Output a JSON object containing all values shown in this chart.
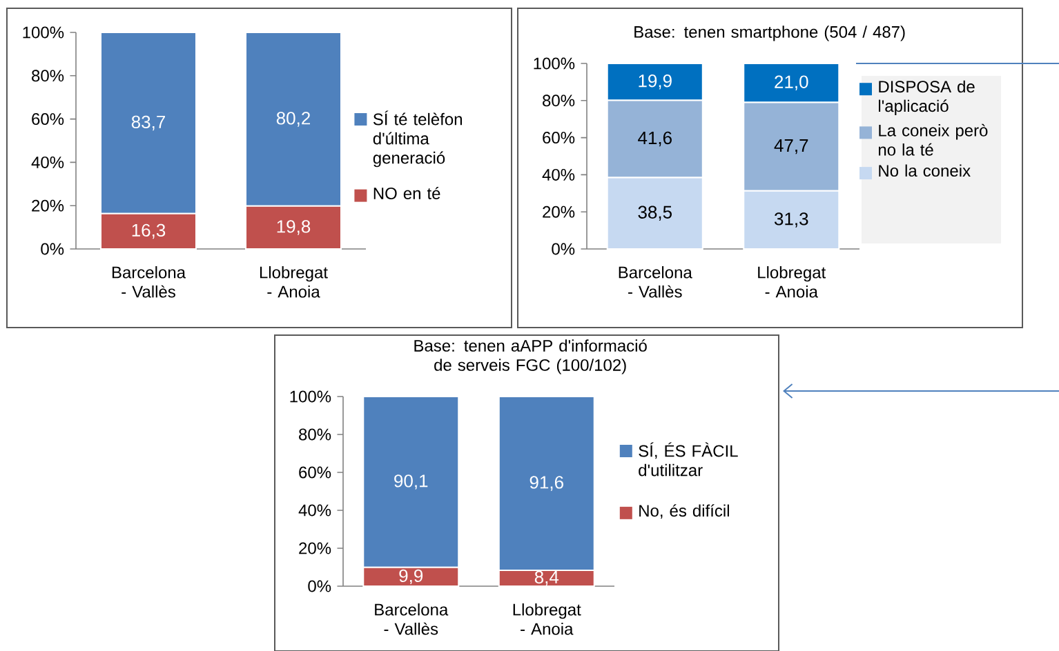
{
  "chart_data": [
    {
      "type": "bar",
      "stacked": true,
      "categories": [
        "Barcelona - Vallès",
        "Llobregat - Anoia"
      ],
      "ylim": [
        0,
        100
      ],
      "yticks": [
        {
          "value": 0,
          "label": "0%"
        },
        {
          "value": 20,
          "label": "20%"
        },
        {
          "value": 40,
          "label": "40%"
        },
        {
          "value": 60,
          "label": "60%"
        },
        {
          "value": 80,
          "label": "80%"
        },
        {
          "value": 100,
          "label": "100%"
        }
      ],
      "legend": "right",
      "series": [
        {
          "name": "NO en té",
          "color": "#c0504d",
          "values": [
            16.3,
            19.8
          ],
          "value_labels": [
            "16,3",
            "19,8"
          ]
        },
        {
          "name": "SÍ té telèfon d'última generació",
          "color": "#4f81bd",
          "values": [
            83.7,
            80.2
          ],
          "value_labels": [
            "83,7",
            "80,2"
          ]
        }
      ]
    },
    {
      "type": "bar",
      "stacked": true,
      "title": "Base: tenen smartphone (504 / 487)",
      "categories": [
        "Barcelona - Vallès",
        "Llobregat - Anoia"
      ],
      "ylim": [
        0,
        100
      ],
      "yticks": [
        {
          "value": 0,
          "label": "0%"
        },
        {
          "value": 20,
          "label": "20%"
        },
        {
          "value": 40,
          "label": "40%"
        },
        {
          "value": 60,
          "label": "60%"
        },
        {
          "value": 80,
          "label": "80%"
        },
        {
          "value": 100,
          "label": "100%"
        }
      ],
      "legend": "right",
      "series": [
        {
          "name": "No la coneix",
          "color": "#c6d9f1",
          "values": [
            38.5,
            31.3
          ],
          "value_labels": [
            "38,5",
            "31,3"
          ]
        },
        {
          "name": "La coneix però no la té",
          "color": "#95b3d7",
          "values": [
            41.6,
            47.7
          ],
          "value_labels": [
            "41,6",
            "47,7"
          ]
        },
        {
          "name": "DISPOSA de l'aplicació",
          "color": "#0070c0",
          "values": [
            19.9,
            21.0
          ],
          "value_labels": [
            "19,9",
            "21,0"
          ]
        }
      ]
    },
    {
      "type": "bar",
      "stacked": true,
      "title": "Base: tenen aAPP d'informació de serveis FGC (100/102)",
      "categories": [
        "Barcelona - Vallès",
        "Llobregat - Anoia"
      ],
      "ylim": [
        0,
        100
      ],
      "yticks": [
        {
          "value": 0,
          "label": "0%"
        },
        {
          "value": 20,
          "label": "20%"
        },
        {
          "value": 40,
          "label": "40%"
        },
        {
          "value": 60,
          "label": "60%"
        },
        {
          "value": 80,
          "label": "80%"
        },
        {
          "value": 100,
          "label": "100%"
        }
      ],
      "legend": "right",
      "series": [
        {
          "name": "No, és difícil",
          "color": "#c0504d",
          "values": [
            9.9,
            8.4
          ],
          "value_labels": [
            "9,9",
            "8,4"
          ]
        },
        {
          "name": "SÍ, ÉS FÀCIL d'utilitzar",
          "color": "#4f81bd",
          "values": [
            90.1,
            91.6
          ],
          "value_labels": [
            "90,1",
            "91,6"
          ]
        }
      ]
    }
  ]
}
